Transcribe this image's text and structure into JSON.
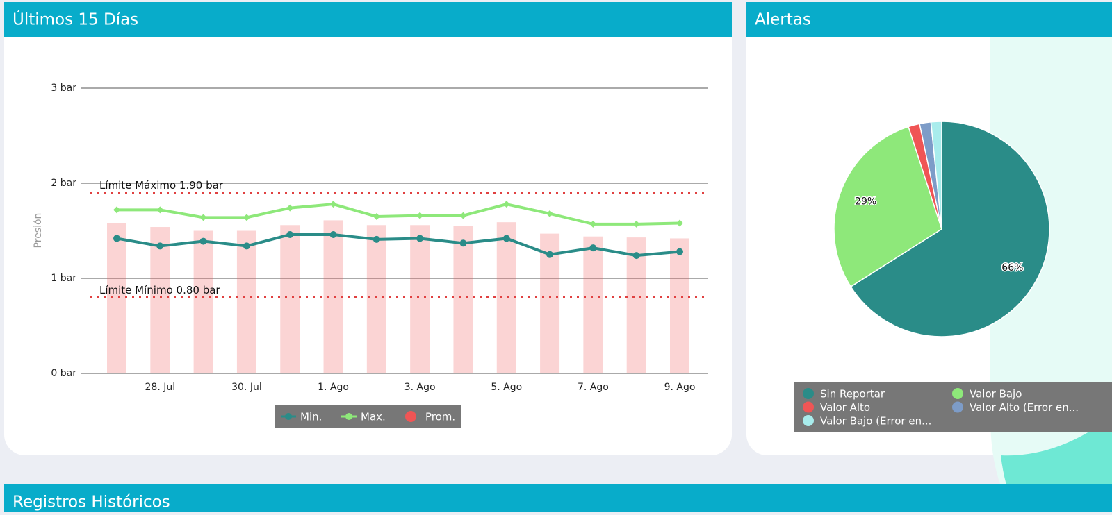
{
  "panels": [
    "Últimos 15 Días",
    "Alertas",
    "Registros Históricos"
  ],
  "chart_data": [
    {
      "type": "line",
      "y_label": "Presión",
      "categories": [
        null,
        "28. Jul",
        null,
        "30. Jul",
        null,
        "1. Ago",
        null,
        "3. Ago",
        null,
        "5. Ago",
        null,
        "7. Ago",
        null,
        "9. Ago"
      ],
      "series": [
        {
          "name": "Min.",
          "color": "#2a8c88",
          "mark": "line",
          "marker": "circle",
          "values": [
            1.42,
            1.34,
            1.39,
            1.34,
            1.46,
            1.46,
            1.41,
            1.42,
            1.37,
            1.42,
            1.25,
            1.32,
            1.24,
            1.28
          ]
        },
        {
          "name": "Max.",
          "color": "#8ee87a",
          "mark": "line",
          "marker": "diamond",
          "values": [
            1.72,
            1.72,
            1.64,
            1.64,
            1.74,
            1.78,
            1.65,
            1.66,
            1.66,
            1.78,
            1.68,
            1.57,
            1.57,
            1.58
          ]
        },
        {
          "name": "Prom.",
          "color": "#f05555",
          "mark": "bar",
          "values": [
            1.58,
            1.54,
            1.5,
            1.5,
            1.56,
            1.61,
            1.56,
            1.56,
            1.55,
            1.59,
            1.47,
            1.44,
            1.43,
            1.42
          ]
        }
      ],
      "thresholds": [
        {
          "value": 1.9,
          "label": "Límite Máximo 1.90 bar",
          "color": "#e04040"
        },
        {
          "value": 0.8,
          "label": "Límite Mínimo 0.80 bar",
          "color": "#e04040"
        }
      ],
      "ylim": [
        0,
        3
      ],
      "yticks": [
        {
          "value": 0,
          "label": "0 bar"
        },
        {
          "value": 1,
          "label": "1 bar"
        },
        {
          "value": 2,
          "label": "2 bar"
        },
        {
          "value": 3,
          "label": "3 bar"
        }
      ],
      "grid": true,
      "legend": "bottom"
    },
    {
      "type": "pie",
      "labels": [
        "Sin Reportar",
        "Valor Bajo",
        "Valor Alto",
        "Valor Alto (Error en...",
        "Valor Bajo (Error en..."
      ],
      "values": [
        66,
        29,
        1.7,
        1.7,
        1.6
      ],
      "value_labels": [
        "66%",
        "29%",
        null,
        null,
        null
      ],
      "colors": [
        "#2a8c88",
        "#8ee87a",
        "#f05555",
        "#7d9cc8",
        "#a8ecec"
      ],
      "legend": "bottom"
    }
  ]
}
